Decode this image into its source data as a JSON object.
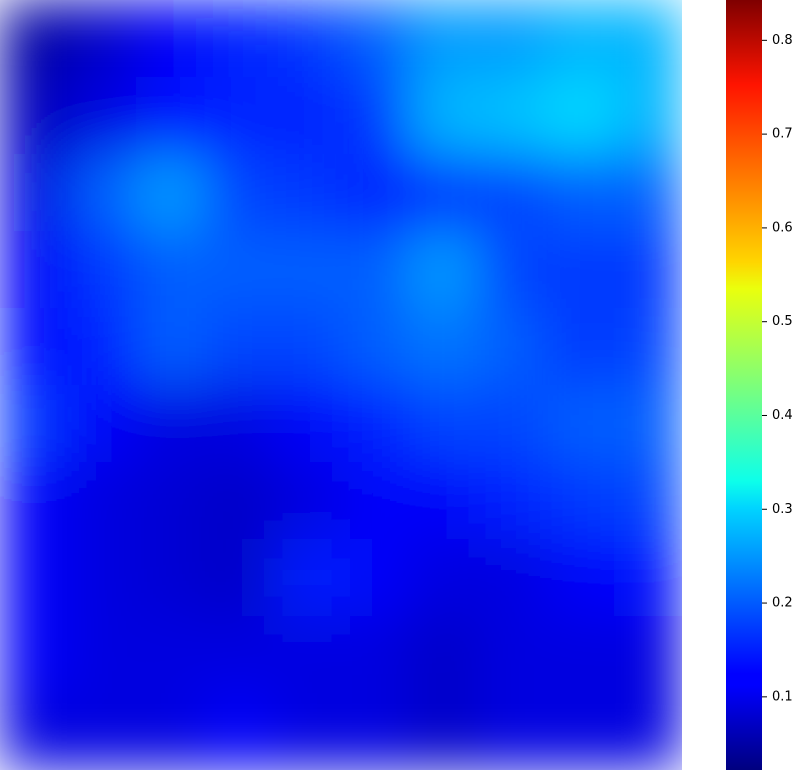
{
  "chart_data": {
    "type": "heatmap",
    "colormap": "jet",
    "clim": [
      0.022,
      0.843
    ],
    "colorbar_ticks": [
      0.1,
      0.2,
      0.3,
      0.4,
      0.5,
      0.6,
      0.7,
      0.8
    ],
    "values": [
      [
        0.05,
        0.08,
        0.12,
        0.15,
        0.17,
        0.2,
        0.25,
        0.25,
        0.27,
        0.27
      ],
      [
        0.07,
        0.1,
        0.13,
        0.15,
        0.15,
        0.17,
        0.27,
        0.28,
        0.3,
        0.27
      ],
      [
        0.1,
        0.2,
        0.25,
        0.18,
        0.17,
        0.15,
        0.17,
        0.18,
        0.2,
        0.2
      ],
      [
        0.12,
        0.17,
        0.2,
        0.2,
        0.2,
        0.2,
        0.25,
        0.18,
        0.17,
        0.17
      ],
      [
        0.13,
        0.15,
        0.2,
        0.18,
        0.18,
        0.2,
        0.22,
        0.2,
        0.17,
        0.18
      ],
      [
        0.17,
        0.12,
        0.1,
        0.1,
        0.12,
        0.15,
        0.18,
        0.18,
        0.2,
        0.2
      ],
      [
        0.12,
        0.1,
        0.09,
        0.08,
        0.1,
        0.12,
        0.12,
        0.15,
        0.17,
        0.18
      ],
      [
        0.12,
        0.1,
        0.09,
        0.08,
        0.15,
        0.12,
        0.1,
        0.1,
        0.12,
        0.13
      ],
      [
        0.12,
        0.1,
        0.1,
        0.1,
        0.1,
        0.1,
        0.08,
        0.1,
        0.1,
        0.1
      ],
      [
        0.1,
        0.1,
        0.1,
        0.12,
        0.1,
        0.1,
        0.08,
        0.1,
        0.1,
        0.1
      ]
    ]
  }
}
